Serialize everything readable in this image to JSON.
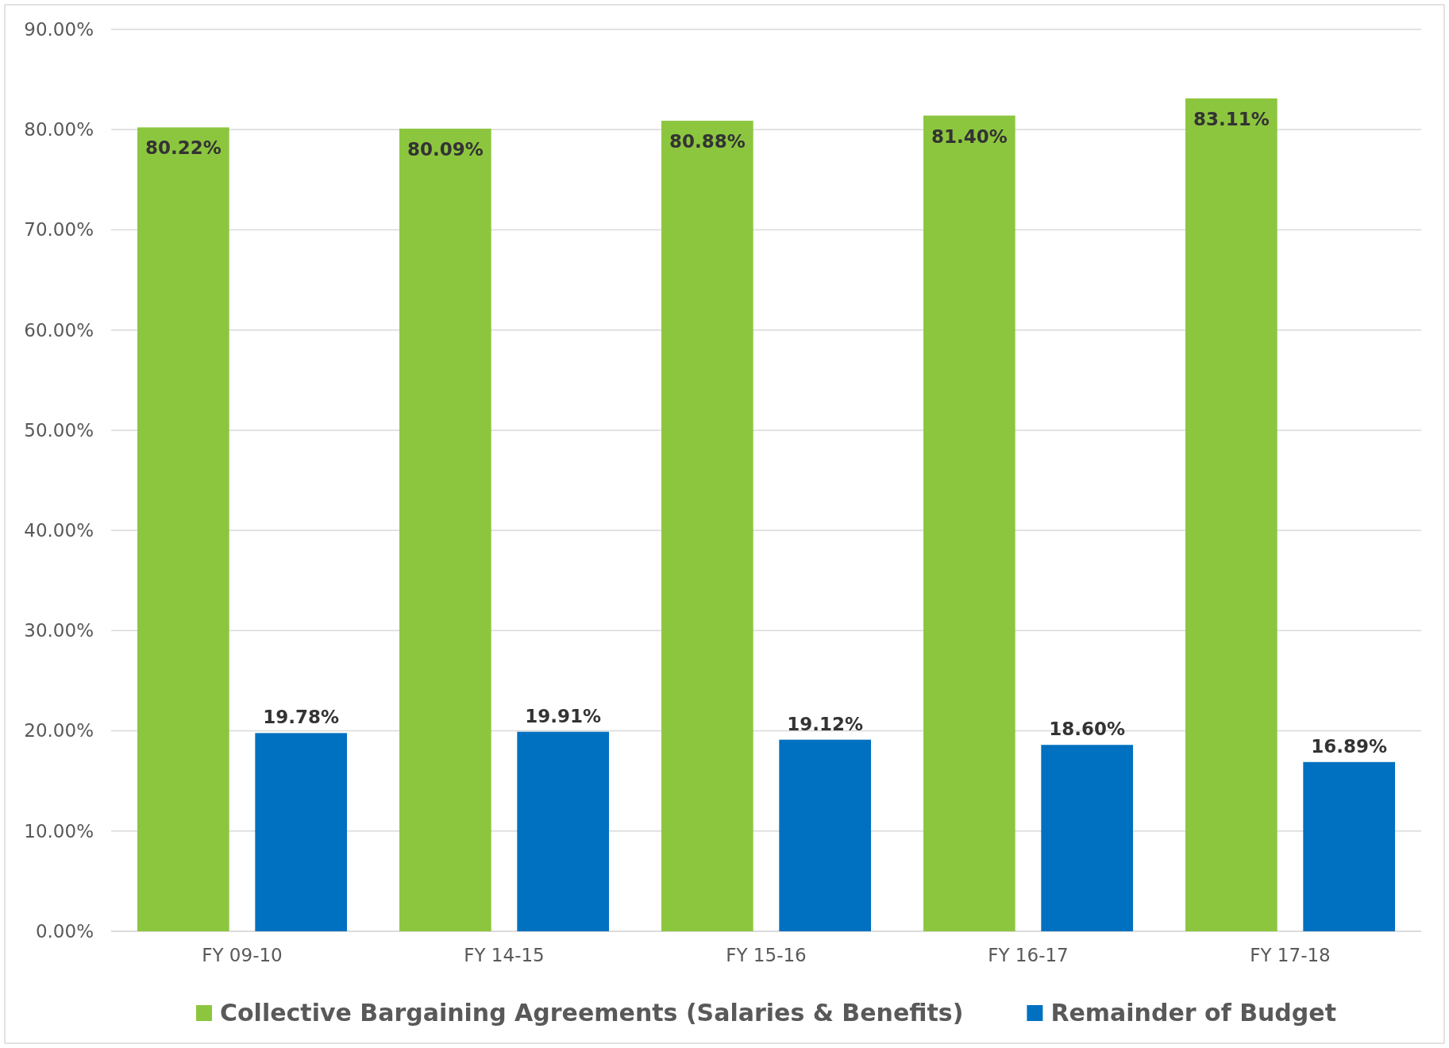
{
  "chart_data": {
    "type": "bar",
    "categories": [
      "FY 09-10",
      "FY 14-15",
      "FY 15-16",
      "FY 16-17",
      "FY 17-18"
    ],
    "series": [
      {
        "name": "Collective Bargaining Agreements (Salaries & Benefits)",
        "color": "#8cc63f",
        "values": [
          80.22,
          80.09,
          80.88,
          81.4,
          83.11
        ],
        "value_labels": [
          "80.22%",
          "80.09%",
          "80.88%",
          "81.40%",
          "83.11%"
        ]
      },
      {
        "name": "Remainder of Budget",
        "color": "#0070c0",
        "values": [
          19.78,
          19.91,
          19.12,
          18.6,
          16.89
        ],
        "value_labels": [
          "19.78%",
          "19.91%",
          "19.12%",
          "18.60%",
          "16.89%"
        ]
      }
    ],
    "ylim": [
      0,
      90
    ],
    "yticks": [
      {
        "value": 0,
        "label": "0.00%"
      },
      {
        "value": 10,
        "label": "10.00%"
      },
      {
        "value": 20,
        "label": "20.00%"
      },
      {
        "value": 30,
        "label": "30.00%"
      },
      {
        "value": 40,
        "label": "40.00%"
      },
      {
        "value": 50,
        "label": "50.00%"
      },
      {
        "value": 60,
        "label": "60.00%"
      },
      {
        "value": 70,
        "label": "70.00%"
      },
      {
        "value": 80,
        "label": "80.00%"
      },
      {
        "value": 90,
        "label": "90.00%"
      }
    ],
    "grid": "y",
    "legend": "bottom"
  }
}
